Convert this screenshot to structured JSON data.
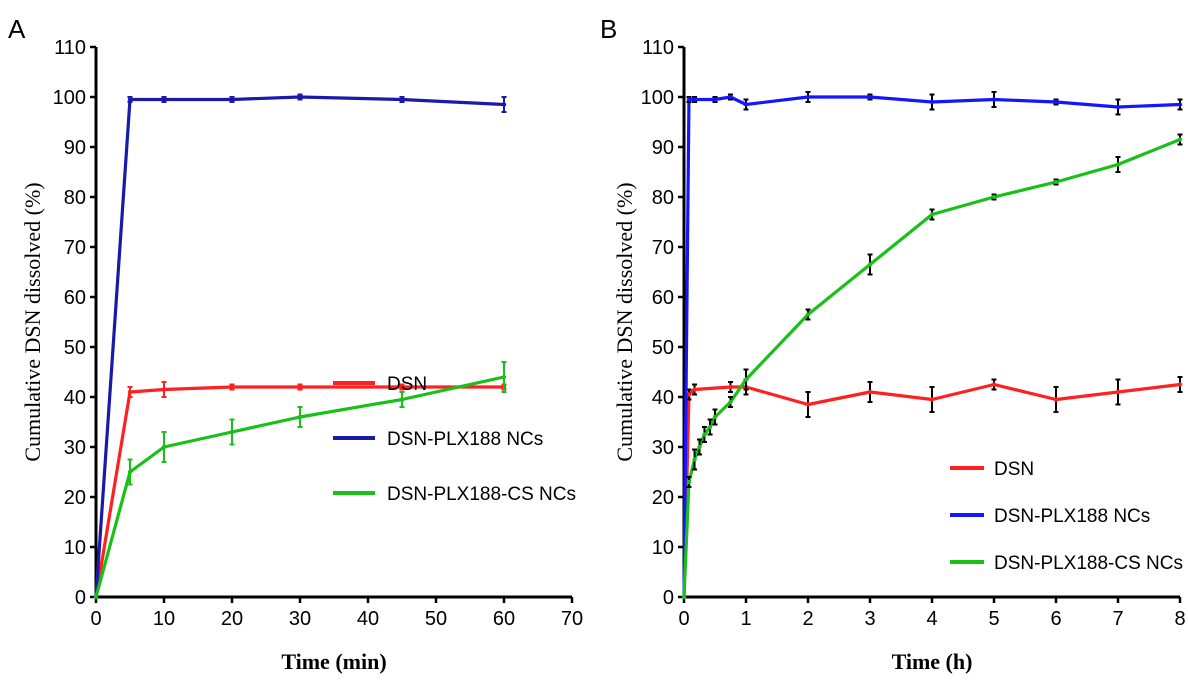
{
  "figure": {
    "colors": {
      "DSN": "#ff2020",
      "DSN-PLX188 NCs_A": "#1a1aa8",
      "DSN-PLX188 NCs_B": "#1515ff",
      "DSN-PLX188-CS NCs": "#18c018",
      "error": "#000000"
    }
  },
  "chart_data": [
    {
      "panel": "A",
      "type": "line",
      "xlabel": "Time (min)",
      "ylabel": "Cumulative DSN dissolved (%)",
      "xlim": [
        0,
        70
      ],
      "ylim": [
        0,
        110
      ],
      "xticks": [
        0,
        10,
        20,
        30,
        40,
        50,
        60,
        70
      ],
      "yticks": [
        0,
        10,
        20,
        30,
        40,
        50,
        60,
        70,
        80,
        90,
        100,
        110
      ],
      "legend_position": "bottom-right",
      "series": [
        {
          "name": "DSN",
          "color": "#ff2020",
          "x": [
            0,
            5,
            10,
            20,
            30,
            45,
            60
          ],
          "y": [
            0,
            41,
            41.5,
            42,
            42,
            42,
            42
          ],
          "err": [
            0,
            1,
            1.5,
            0.5,
            0.5,
            0.5,
            0.5
          ]
        },
        {
          "name": "DSN-PLX188 NCs",
          "color": "#1a1aa8",
          "x": [
            0,
            5,
            10,
            20,
            30,
            45,
            60
          ],
          "y": [
            0,
            99.5,
            99.5,
            99.5,
            100,
            99.5,
            98.5
          ],
          "err": [
            0,
            0.5,
            0.5,
            0.5,
            0.5,
            0.5,
            1.5
          ]
        },
        {
          "name": "DSN-PLX188-CS NCs",
          "color": "#18c018",
          "x": [
            0,
            5,
            10,
            20,
            30,
            45,
            60
          ],
          "y": [
            0,
            25,
            30,
            33,
            36,
            39.5,
            44
          ],
          "err": [
            0,
            2.5,
            3,
            2.5,
            2,
            1.5,
            3
          ]
        }
      ]
    },
    {
      "panel": "B",
      "type": "line",
      "xlabel": "Time (h)",
      "ylabel": "Cumulative DSN dissolved (%)",
      "xlim": [
        0,
        8
      ],
      "ylim": [
        0,
        110
      ],
      "xticks": [
        0,
        1,
        2,
        3,
        4,
        5,
        6,
        7,
        8
      ],
      "yticks": [
        0,
        10,
        20,
        30,
        40,
        50,
        60,
        70,
        80,
        90,
        100,
        110
      ],
      "legend_position": "bottom-right",
      "series": [
        {
          "name": "DSN",
          "color": "#ff2020",
          "x": [
            0,
            0.08,
            0.17,
            0.75,
            1,
            2,
            3,
            4,
            5,
            6,
            7,
            8
          ],
          "y": [
            0,
            40.5,
            41.5,
            42,
            42,
            38.5,
            41,
            39.5,
            42.5,
            39.5,
            41,
            42.5
          ],
          "err": [
            0,
            1,
            1,
            1,
            1.5,
            2.5,
            2,
            2.5,
            1,
            2.5,
            2.5,
            1.5
          ]
        },
        {
          "name": "DSN-PLX188 NCs",
          "color": "#1515ff",
          "x": [
            0,
            0.08,
            0.17,
            0.5,
            0.75,
            1,
            2,
            3,
            4,
            5,
            6,
            7,
            8
          ],
          "y": [
            0,
            99.5,
            99.5,
            99.5,
            100,
            98.5,
            100,
            100,
            99,
            99.5,
            99,
            98,
            98.5
          ],
          "err": [
            0,
            0.5,
            0.5,
            0.5,
            0.5,
            1,
            1,
            0.5,
            1.5,
            1.5,
            0.5,
            1.5,
            1
          ]
        },
        {
          "name": "DSN-PLX188-CS NCs",
          "color": "#18c018",
          "x": [
            0,
            0.08,
            0.17,
            0.25,
            0.33,
            0.42,
            0.5,
            0.75,
            1,
            2,
            3,
            4,
            5,
            6,
            7,
            8
          ],
          "y": [
            0,
            23,
            27.5,
            30,
            32.5,
            34,
            36,
            39,
            43.5,
            56.5,
            66.5,
            76.5,
            80,
            83,
            86.5,
            91.5
          ],
          "err": [
            0,
            1,
            2,
            1.5,
            1.5,
            1.5,
            1.5,
            1,
            2,
            1,
            2,
            1,
            0.5,
            0.5,
            1.5,
            1
          ]
        }
      ]
    }
  ]
}
